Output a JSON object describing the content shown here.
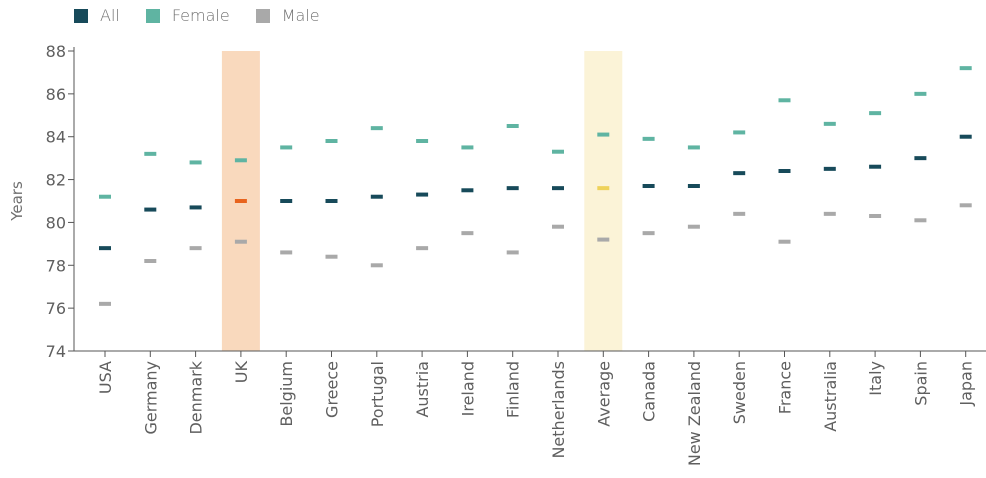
{
  "chart_data": {
    "type": "scatter",
    "ylabel": "Years",
    "xlabel": "",
    "ylim": [
      74,
      88
    ],
    "yticks": [
      74,
      76,
      78,
      80,
      82,
      84,
      86,
      88
    ],
    "legend_position": "top-left",
    "grid": false,
    "categories": [
      "USA",
      "Germany",
      "Denmark",
      "UK",
      "Belgium",
      "Greece",
      "Portugal",
      "Austria",
      "Ireland",
      "Finland",
      "Netherlands",
      "Average",
      "Canada",
      "New Zealand",
      "Sweden",
      "France",
      "Australia",
      "Italy",
      "Spain",
      "Japan"
    ],
    "highlights": [
      {
        "category": "UK",
        "color": "#f9d9bd",
        "marker_color": "#e8641e"
      },
      {
        "category": "Average",
        "color": "#fbf3d7",
        "marker_color": "#eed25a"
      }
    ],
    "series": [
      {
        "name": "All",
        "color": "#174a5a",
        "values": [
          78.8,
          80.6,
          80.7,
          81.0,
          81.0,
          81.0,
          81.2,
          81.3,
          81.5,
          81.6,
          81.6,
          81.6,
          81.7,
          81.7,
          82.3,
          82.4,
          82.5,
          82.6,
          83.0,
          84.0
        ]
      },
      {
        "name": "Female",
        "color": "#5fb4a2",
        "values": [
          81.2,
          83.2,
          82.8,
          82.9,
          83.5,
          83.8,
          84.4,
          83.8,
          83.5,
          84.5,
          83.3,
          84.1,
          83.9,
          83.5,
          84.2,
          85.7,
          84.6,
          85.1,
          86.0,
          87.2
        ]
      },
      {
        "name": "Male",
        "color": "#a9a9a9",
        "values": [
          76.2,
          78.2,
          78.8,
          79.1,
          78.6,
          78.4,
          78.0,
          78.8,
          79.5,
          78.6,
          79.8,
          79.2,
          79.5,
          79.8,
          80.4,
          79.1,
          80.4,
          80.3,
          80.1,
          80.8
        ]
      }
    ]
  }
}
